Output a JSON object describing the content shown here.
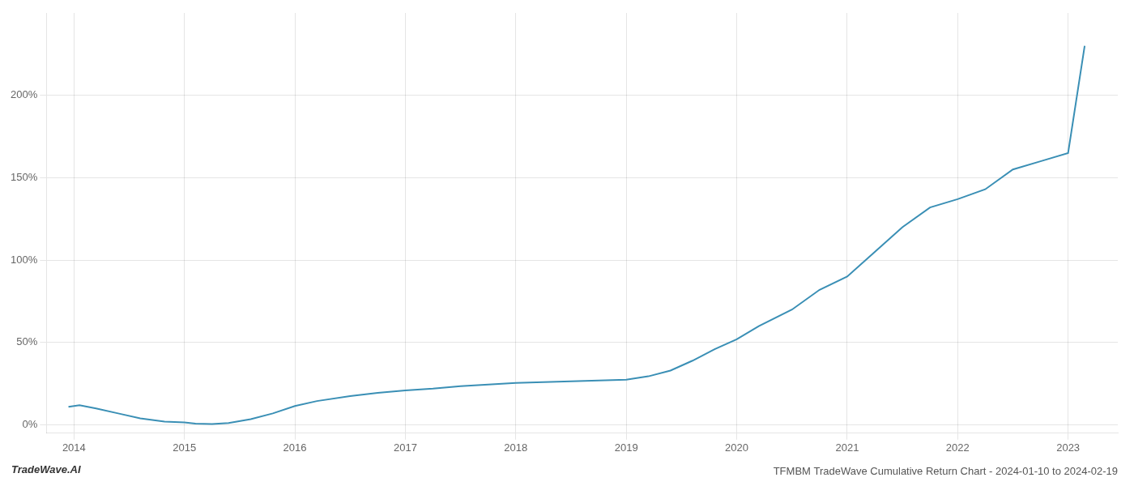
{
  "chart_data": {
    "type": "line",
    "title": "TFMBM TradeWave Cumulative Return Chart - 2024-01-10 to 2024-02-19",
    "annotations": [
      "TradeWave.AI"
    ],
    "x": [
      2013.95,
      2014.05,
      2014.2,
      2014.4,
      2014.6,
      2014.82,
      2015.0,
      2015.1,
      2015.25,
      2015.4,
      2015.6,
      2015.8,
      2016.0,
      2016.2,
      2016.5,
      2016.75,
      2017.0,
      2017.25,
      2017.5,
      2017.75,
      2018.0,
      2018.25,
      2018.5,
      2018.75,
      2019.0,
      2019.2,
      2019.4,
      2019.6,
      2019.8,
      2020.0,
      2020.2,
      2020.5,
      2020.75,
      2021.0,
      2021.25,
      2021.5,
      2021.75,
      2022.0,
      2022.25,
      2022.5,
      2022.75,
      2023.0,
      2023.15
    ],
    "values": [
      0.11,
      0.12,
      0.1,
      0.07,
      0.04,
      0.02,
      0.015,
      0.008,
      0.005,
      0.012,
      0.035,
      0.07,
      0.115,
      0.145,
      0.175,
      0.195,
      0.21,
      0.22,
      0.235,
      0.245,
      0.255,
      0.26,
      0.265,
      0.27,
      0.275,
      0.295,
      0.33,
      0.39,
      0.46,
      0.52,
      0.6,
      0.7,
      0.82,
      0.9,
      1.05,
      1.2,
      1.32,
      1.37,
      1.43,
      1.55,
      1.6,
      1.65,
      2.3
    ],
    "color": "#3a8fb5",
    "xlim": [
      2013.75,
      2023.45
    ],
    "xticks": [
      2014,
      2015,
      2016,
      2017,
      2018,
      2019,
      2020,
      2021,
      2022,
      2023
    ],
    "ylim": [
      -0.05,
      2.5
    ],
    "yticks": [
      {
        "value": 0.0,
        "label": "0%"
      },
      {
        "value": 0.5,
        "label": "50%"
      },
      {
        "value": 1.0,
        "label": "100%"
      },
      {
        "value": 1.5,
        "label": "150%"
      },
      {
        "value": 2.0,
        "label": "200%"
      }
    ],
    "grid": true
  }
}
